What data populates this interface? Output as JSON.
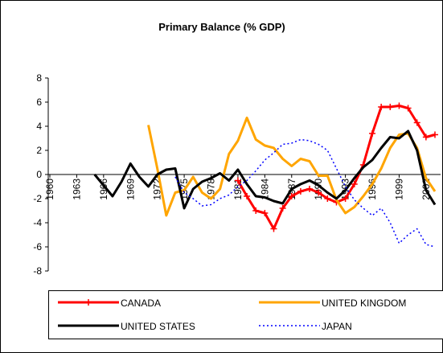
{
  "chart_data": {
    "type": "line",
    "title": "Primary Balance (% GDP)",
    "x": [
      1960,
      1961,
      1962,
      1963,
      1964,
      1965,
      1966,
      1967,
      1968,
      1969,
      1970,
      1971,
      1972,
      1973,
      1974,
      1975,
      1976,
      1977,
      1978,
      1979,
      1980,
      1981,
      1982,
      1983,
      1984,
      1985,
      1986,
      1987,
      1988,
      1989,
      1990,
      1991,
      1992,
      1993,
      1994,
      1995,
      1996,
      1997,
      1998,
      1999,
      2000,
      2001,
      2002,
      2003
    ],
    "xlim": [
      1960,
      2003
    ],
    "xticks": [
      1960,
      1963,
      1966,
      1969,
      1972,
      1975,
      1978,
      1981,
      1984,
      1987,
      1990,
      1993,
      1996,
      1999,
      2002
    ],
    "ylim": [
      -8,
      8
    ],
    "yticks": [
      -8,
      -6,
      -4,
      -2,
      0,
      2,
      4,
      6,
      8
    ],
    "series": [
      {
        "name": "CANADA",
        "color": "#ff0000",
        "marker": "plus",
        "values": [
          null,
          null,
          null,
          null,
          null,
          null,
          null,
          null,
          null,
          null,
          null,
          null,
          null,
          null,
          null,
          null,
          null,
          null,
          null,
          null,
          null,
          -0.5,
          -1.8,
          -3.0,
          -3.2,
          -4.5,
          -2.8,
          -1.8,
          -1.4,
          -1.2,
          -1.5,
          -2.0,
          -2.3,
          -2.0,
          -0.8,
          0.8,
          3.4,
          5.6,
          5.6,
          5.7,
          5.5,
          4.3,
          3.1,
          3.3
        ]
      },
      {
        "name": "UNITED KINGDOM",
        "color": "#ffa500",
        "values": [
          null,
          null,
          null,
          null,
          null,
          null,
          null,
          null,
          null,
          null,
          null,
          4.1,
          0.5,
          -3.4,
          -1.5,
          -1.3,
          -0.2,
          -1.5,
          -2.0,
          -1.2,
          1.7,
          2.8,
          4.7,
          2.9,
          2.4,
          2.2,
          1.3,
          0.7,
          1.3,
          1.1,
          -0.1,
          -0.1,
          -2.1,
          -3.2,
          -2.7,
          -1.8,
          -0.8,
          0.5,
          2.2,
          3.3,
          3.4,
          2.2,
          -0.3,
          -1.4
        ]
      },
      {
        "name": "UNITED STATES",
        "color": "#000000",
        "values": [
          null,
          null,
          null,
          null,
          null,
          0,
          -0.9,
          -1.8,
          -0.6,
          0.9,
          -0.2,
          -1.0,
          0.0,
          0.4,
          0.5,
          -2.8,
          -1.2,
          -0.6,
          -0.3,
          0.1,
          -0.5,
          0.4,
          -0.8,
          -1.8,
          -1.9,
          -2.2,
          -2.4,
          -1.2,
          -0.8,
          -0.5,
          -0.9,
          -1.5,
          -2.0,
          -1.3,
          -0.3,
          0.6,
          1.2,
          2.2,
          3.1,
          3.0,
          3.6,
          2.0,
          -1.3,
          -2.5
        ]
      },
      {
        "name": "JAPAN",
        "color": "#0000ff",
        "dash": true,
        "values": [
          null,
          null,
          null,
          null,
          null,
          null,
          null,
          null,
          null,
          null,
          null,
          null,
          null,
          null,
          -0.2,
          -1.5,
          -2.0,
          -2.6,
          -2.5,
          -2.0,
          -1.7,
          -1.0,
          -0.5,
          0.3,
          1.2,
          1.8,
          2.5,
          2.6,
          2.9,
          2.8,
          2.5,
          2.0,
          0.5,
          -1.0,
          -2.1,
          -2.8,
          -3.4,
          -2.8,
          -4.0,
          -5.7,
          -5.0,
          -4.5,
          -5.8,
          -6.0
        ]
      }
    ]
  }
}
